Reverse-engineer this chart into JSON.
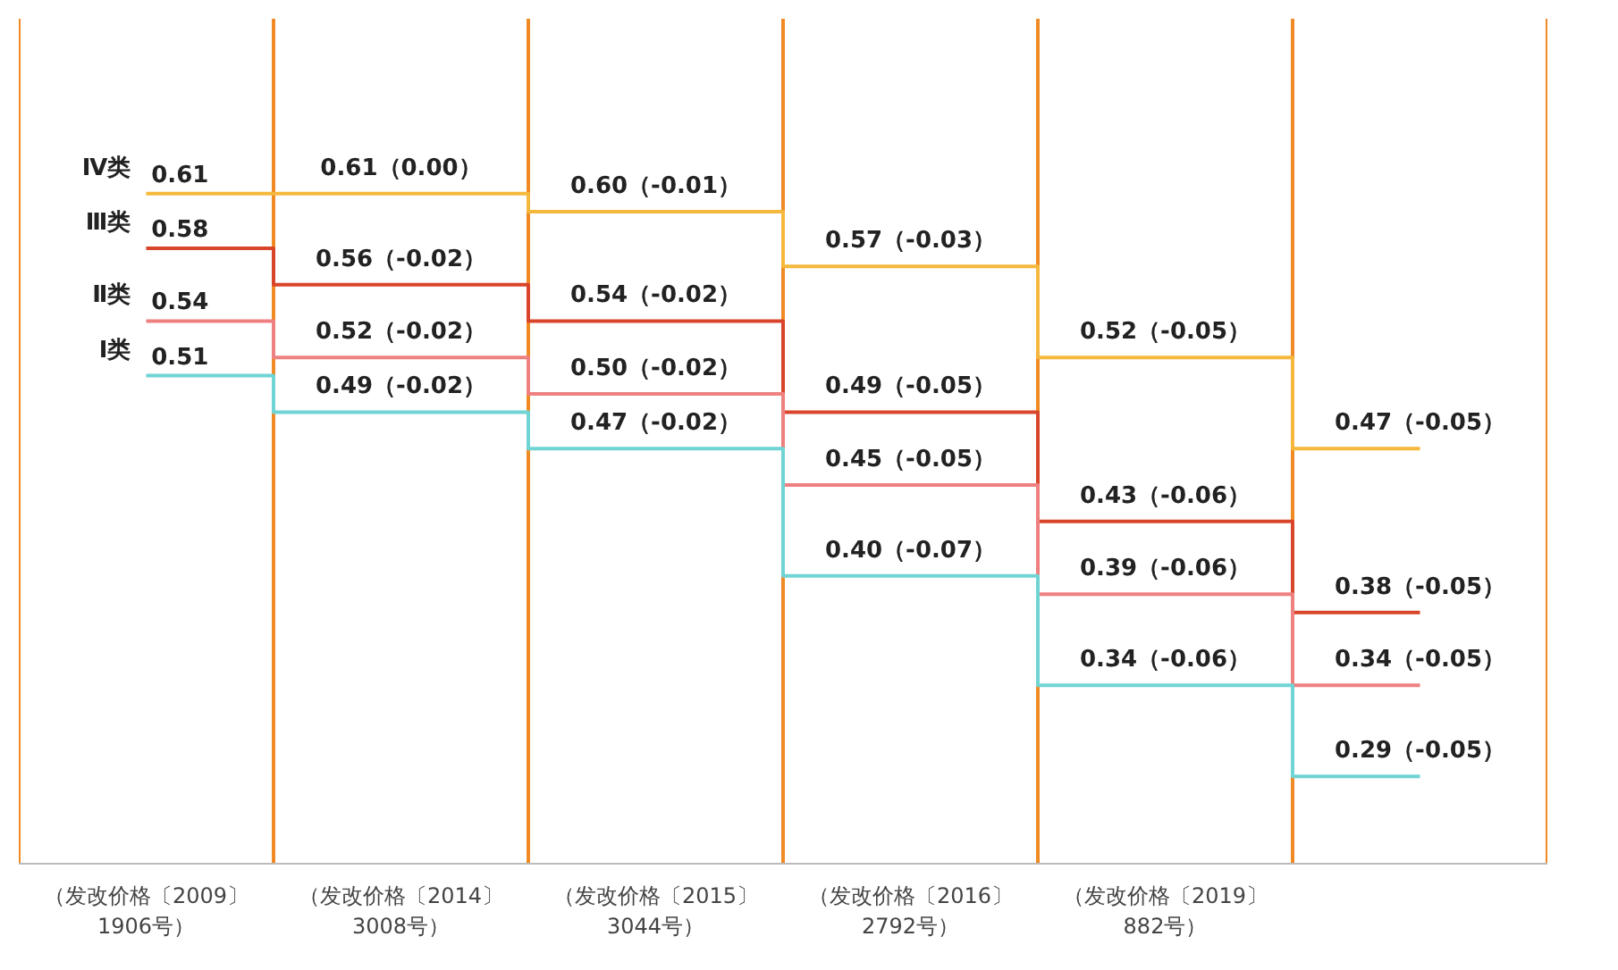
{
  "chart_data": {
    "type": "step",
    "categories": [
      "（发改价格〔2009〕1906号）",
      "（发改价格〔2014〕3008号）",
      "（发改价格〔2015〕3044号）",
      "（发改价格〔2016〕2792号）",
      "（发改价格〔2019〕882号）",
      null
    ],
    "series": [
      {
        "name": "Ⅳ类",
        "color": "#f5b83d",
        "values": [
          0.61,
          0.61,
          0.6,
          0.57,
          0.52,
          0.47
        ],
        "value_labels": [
          "0.61",
          "0.61（0.00）",
          "0.60（-0.01）",
          "0.57（-0.03）",
          "0.52（-0.05）",
          "0.47（-0.05）"
        ]
      },
      {
        "name": "Ⅲ类",
        "color": "#d9452a",
        "values": [
          0.58,
          0.56,
          0.54,
          0.49,
          0.43,
          0.38
        ],
        "value_labels": [
          "0.58",
          "0.56（-0.02）",
          "0.54（-0.02）",
          "0.49（-0.05）",
          "0.43（-0.06）",
          "0.38（-0.05）"
        ]
      },
      {
        "name": "Ⅱ类",
        "color": "#ef8080",
        "values": [
          0.54,
          0.52,
          0.5,
          0.45,
          0.39,
          0.34
        ],
        "value_labels": [
          "0.54",
          "0.52（-0.02）",
          "0.50（-0.02）",
          "0.45（-0.05）",
          "0.39（-0.06）",
          "0.34（-0.05）"
        ]
      },
      {
        "name": "Ⅰ类",
        "color": "#70d4d4",
        "values": [
          0.51,
          0.49,
          0.47,
          0.4,
          0.34,
          0.29
        ],
        "value_labels": [
          "0.51",
          "0.49（-0.02）",
          "0.47（-0.02）",
          "0.40（-0.07）",
          "0.34（-0.06）",
          "0.29（-0.05）"
        ]
      }
    ],
    "grid": "x"
  }
}
